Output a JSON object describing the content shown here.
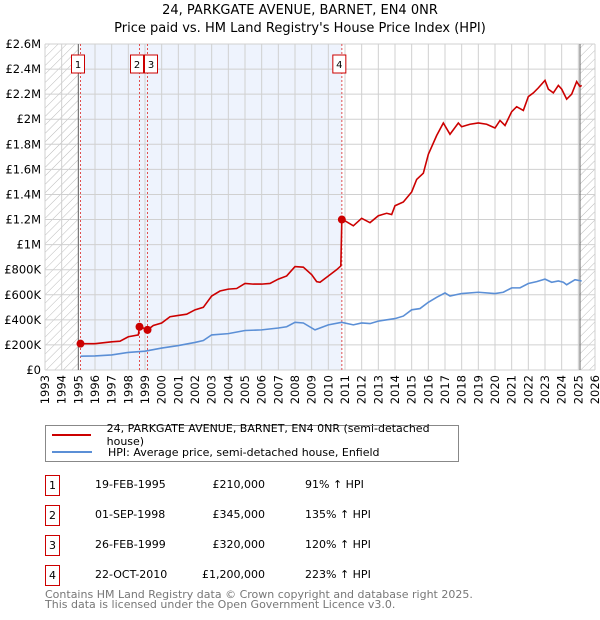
{
  "title": "24, PARKGATE AVENUE, BARNET, EN4 0NR",
  "subtitle": "Price paid vs. HM Land Registry's House Price Index (HPI)",
  "chart_data": {
    "type": "line",
    "title": "24, PARKGATE AVENUE, BARNET, EN4 0NR",
    "subtitle": "Price paid vs. HM Land Registry's House Price Index (HPI)",
    "xlim": [
      1993,
      2026
    ],
    "ylim": [
      0,
      2600000
    ],
    "xticks": [
      "1993",
      "1994",
      "1995",
      "1996",
      "1997",
      "1998",
      "1999",
      "2000",
      "2001",
      "2002",
      "2003",
      "2004",
      "2005",
      "2006",
      "2007",
      "2008",
      "2009",
      "2010",
      "2011",
      "2012",
      "2013",
      "2014",
      "2015",
      "2016",
      "2017",
      "2018",
      "2019",
      "2020",
      "2021",
      "2022",
      "2023",
      "2024",
      "2025",
      "2026"
    ],
    "yticks": [
      {
        "v": 0,
        "l": "£0"
      },
      {
        "v": 200000,
        "l": "£200K"
      },
      {
        "v": 400000,
        "l": "£400K"
      },
      {
        "v": 600000,
        "l": "£600K"
      },
      {
        "v": 800000,
        "l": "£800K"
      },
      {
        "v": 1000000,
        "l": "£1M"
      },
      {
        "v": 1200000,
        "l": "£1.2M"
      },
      {
        "v": 1400000,
        "l": "£1.4M"
      },
      {
        "v": 1600000,
        "l": "£1.6M"
      },
      {
        "v": 1800000,
        "l": "£1.8M"
      },
      {
        "v": 2000000,
        "l": "£2M"
      },
      {
        "v": 2200000,
        "l": "£2.2M"
      },
      {
        "v": 2400000,
        "l": "£2.4M"
      },
      {
        "v": 2600000,
        "l": "£2.6M"
      }
    ],
    "grid": true,
    "hatched_before": 1995.0,
    "hatched_after": 2025.1,
    "shaded_range": [
      1995.13,
      2010.81
    ],
    "series": [
      {
        "name": "24, PARKGATE AVENUE, BARNET, EN4 0NR (semi-detached house)",
        "color": "#cc0000",
        "x": [
          1995.13,
          1996,
          1997,
          1997.5,
          1998,
          1998.6,
          1998.67,
          1999.0,
          1999.15,
          1999.5,
          2000,
          2000.5,
          2001,
          2001.5,
          2002,
          2002.5,
          2003,
          2003.5,
          2004,
          2004.5,
          2005,
          2005.5,
          2006,
          2006.5,
          2007,
          2007.5,
          2008,
          2008.5,
          2009,
          2009.3,
          2009.5,
          2010,
          2010.5,
          2010.75,
          2010.81,
          2011,
          2011.5,
          2012,
          2012.5,
          2013,
          2013.5,
          2013.8,
          2014,
          2014.5,
          2015,
          2015.3,
          2015.7,
          2016,
          2016.5,
          2016.9,
          2017.3,
          2017.8,
          2018,
          2018.5,
          2019,
          2019.5,
          2020,
          2020.3,
          2020.6,
          2021,
          2021.3,
          2021.7,
          2022,
          2022.3,
          2022.6,
          2023,
          2023.2,
          2023.5,
          2023.8,
          2024,
          2024.3,
          2024.6,
          2024.9,
          2025.1,
          2025.2
        ],
        "y": [
          210000,
          210000,
          225000,
          230000,
          265000,
          280000,
          345000,
          330000,
          320000,
          355000,
          375000,
          425000,
          435000,
          445000,
          480000,
          500000,
          590000,
          630000,
          645000,
          650000,
          690000,
          685000,
          685000,
          690000,
          725000,
          750000,
          825000,
          820000,
          760000,
          705000,
          700000,
          750000,
          800000,
          830000,
          1200000,
          1190000,
          1150000,
          1210000,
          1175000,
          1230000,
          1250000,
          1240000,
          1310000,
          1340000,
          1420000,
          1520000,
          1570000,
          1720000,
          1870000,
          1970000,
          1880000,
          1970000,
          1940000,
          1960000,
          1970000,
          1960000,
          1930000,
          1990000,
          1950000,
          2060000,
          2100000,
          2070000,
          2180000,
          2210000,
          2250000,
          2310000,
          2240000,
          2210000,
          2270000,
          2240000,
          2160000,
          2200000,
          2300000,
          2260000,
          2270000
        ]
      },
      {
        "name": "HPI: Average price, semi-detached house, Enfield",
        "color": "#5b8fd6",
        "x": [
          1995.13,
          1996,
          1997,
          1998,
          1999,
          2000,
          2001,
          2002,
          2002.5,
          2003,
          2004,
          2005,
          2006,
          2007,
          2007.5,
          2008,
          2008.5,
          2009.2,
          2009.6,
          2010,
          2010.8,
          2011.5,
          2012,
          2012.5,
          2013,
          2014,
          2014.5,
          2015,
          2015.5,
          2016,
          2016.5,
          2017,
          2017.3,
          2018,
          2019,
          2020,
          2020.5,
          2021,
          2021.5,
          2022,
          2022.5,
          2023,
          2023.4,
          2023.8,
          2024.1,
          2024.3,
          2024.8,
          2025.2
        ],
        "y": [
          110000,
          112000,
          120000,
          140000,
          150000,
          175000,
          195000,
          220000,
          235000,
          280000,
          290000,
          315000,
          320000,
          335000,
          345000,
          380000,
          375000,
          320000,
          340000,
          360000,
          380000,
          360000,
          375000,
          370000,
          390000,
          410000,
          430000,
          480000,
          490000,
          540000,
          580000,
          615000,
          590000,
          610000,
          620000,
          610000,
          620000,
          655000,
          655000,
          690000,
          705000,
          725000,
          700000,
          710000,
          700000,
          680000,
          720000,
          710000
        ]
      }
    ],
    "sales": [
      {
        "n": "1",
        "x": 1995.13,
        "y": 210000
      },
      {
        "n": "2",
        "x": 1998.67,
        "y": 345000
      },
      {
        "n": "3",
        "x": 1999.15,
        "y": 320000
      },
      {
        "n": "4",
        "x": 2010.81,
        "y": 1200000
      }
    ]
  },
  "legend": [
    {
      "label": "24, PARKGATE AVENUE, BARNET, EN4 0NR (semi-detached house)",
      "color": "#cc0000"
    },
    {
      "label": "HPI: Average price, semi-detached house, Enfield",
      "color": "#5b8fd6"
    }
  ],
  "table": [
    {
      "n": "1",
      "date": "19-FEB-1995",
      "price": "£210,000",
      "hpi": "91% ↑ HPI"
    },
    {
      "n": "2",
      "date": "01-SEP-1998",
      "price": "£345,000",
      "hpi": "135% ↑ HPI"
    },
    {
      "n": "3",
      "date": "26-FEB-1999",
      "price": "£320,000",
      "hpi": "120% ↑ HPI"
    },
    {
      "n": "4",
      "date": "22-OCT-2010",
      "price": "£1,200,000",
      "hpi": "223% ↑ HPI"
    }
  ],
  "footer": [
    "Contains HM Land Registry data © Crown copyright and database right 2025.",
    "This data is licensed under the Open Government Licence v3.0."
  ]
}
